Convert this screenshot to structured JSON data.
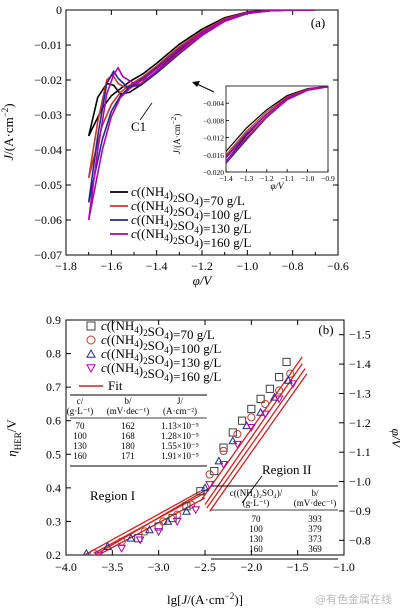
{
  "watermark": "@有色金属在线",
  "chart_data": [
    {
      "panel": "(a)",
      "type": "line",
      "xlabel": "φ/V",
      "ylabel": "J/(A·cm⁻²)",
      "xlim": [
        -1.8,
        -0.6
      ],
      "ylim": [
        -0.07,
        0.0
      ],
      "xticks": [
        -1.8,
        -1.6,
        -1.4,
        -1.2,
        -1.0,
        -0.8,
        -0.6
      ],
      "xtick_labels": [
        "−1.8",
        "−1.6",
        "−1.4",
        "−1.2",
        "−1.0",
        "−0.8",
        "−0.6"
      ],
      "yticks": [
        0,
        -0.01,
        -0.02,
        -0.03,
        -0.04,
        -0.05,
        -0.06,
        -0.07
      ],
      "ytick_labels": [
        "0",
        "−0.01",
        "−0.02",
        "−0.03",
        "−0.04",
        "−0.05",
        "−0.06",
        "−0.07"
      ],
      "annotation": "C1",
      "legend_position": "bottom-center",
      "series": [
        {
          "name": "c((NH4)2SO4)=70 g/L",
          "color": "#000000",
          "forward": [
            [
              -1.7,
              -0.036
            ],
            [
              -1.66,
              -0.025
            ],
            [
              -1.62,
              -0.021
            ],
            [
              -1.59,
              -0.0215
            ],
            [
              -1.56,
              -0.024
            ],
            [
              -1.52,
              -0.0235
            ],
            [
              -1.46,
              -0.021
            ],
            [
              -1.4,
              -0.0175
            ],
            [
              -1.3,
              -0.0115
            ],
            [
              -1.2,
              -0.0065
            ],
            [
              -1.1,
              -0.0028
            ],
            [
              -1.0,
              -0.0008
            ],
            [
              -0.9,
              -0.0002
            ],
            [
              -0.8,
              0.0
            ],
            [
              -0.7,
              0.0
            ]
          ],
          "reverse": [
            [
              -0.7,
              0.0
            ],
            [
              -0.8,
              0.0
            ],
            [
              -0.9,
              -0.0001
            ],
            [
              -1.0,
              -0.0006
            ],
            [
              -1.1,
              -0.0022
            ],
            [
              -1.2,
              -0.0055
            ],
            [
              -1.3,
              -0.0098
            ],
            [
              -1.4,
              -0.0152
            ],
            [
              -1.46,
              -0.0182
            ],
            [
              -1.52,
              -0.0205
            ],
            [
              -1.56,
              -0.0225
            ],
            [
              -1.6,
              -0.0245
            ],
            [
              -1.64,
              -0.028
            ],
            [
              -1.7,
              -0.036
            ]
          ]
        },
        {
          "name": "c((NH4)2SO4)=100 g/L",
          "color": "#c0392b",
          "forward": [
            [
              -1.7,
              -0.048
            ],
            [
              -1.66,
              -0.032
            ],
            [
              -1.62,
              -0.02
            ],
            [
              -1.595,
              -0.0185
            ],
            [
              -1.57,
              -0.021
            ],
            [
              -1.53,
              -0.0225
            ],
            [
              -1.47,
              -0.021
            ],
            [
              -1.4,
              -0.0175
            ],
            [
              -1.3,
              -0.012
            ],
            [
              -1.2,
              -0.007
            ],
            [
              -1.1,
              -0.003
            ],
            [
              -1.0,
              -0.0009
            ],
            [
              -0.9,
              -0.0002
            ],
            [
              -0.8,
              0.0
            ],
            [
              -0.7,
              0.0
            ]
          ],
          "reverse": [
            [
              -0.7,
              0.0
            ],
            [
              -0.8,
              0.0
            ],
            [
              -0.9,
              -0.0001
            ],
            [
              -1.0,
              -0.0007
            ],
            [
              -1.1,
              -0.0025
            ],
            [
              -1.2,
              -0.006
            ],
            [
              -1.3,
              -0.0105
            ],
            [
              -1.4,
              -0.016
            ],
            [
              -1.46,
              -0.019
            ],
            [
              -1.52,
              -0.0215
            ],
            [
              -1.56,
              -0.0235
            ],
            [
              -1.6,
              -0.027
            ],
            [
              -1.64,
              -0.033
            ],
            [
              -1.7,
              -0.048
            ]
          ]
        },
        {
          "name": "c((NH4)2SO4)=130 g/L",
          "color": "#1f2a8a",
          "forward": [
            [
              -1.7,
              -0.055
            ],
            [
              -1.66,
              -0.036
            ],
            [
              -1.62,
              -0.021
            ],
            [
              -1.59,
              -0.0175
            ],
            [
              -1.57,
              -0.0195
            ],
            [
              -1.53,
              -0.022
            ],
            [
              -1.47,
              -0.0215
            ],
            [
              -1.4,
              -0.018
            ],
            [
              -1.3,
              -0.0125
            ],
            [
              -1.2,
              -0.0073
            ],
            [
              -1.1,
              -0.0032
            ],
            [
              -1.0,
              -0.001
            ],
            [
              -0.9,
              -0.0002
            ],
            [
              -0.8,
              0.0
            ],
            [
              -0.7,
              0.0
            ]
          ],
          "reverse": [
            [
              -0.7,
              0.0
            ],
            [
              -0.8,
              0.0
            ],
            [
              -0.9,
              -0.0001
            ],
            [
              -1.0,
              -0.0008
            ],
            [
              -1.1,
              -0.0028
            ],
            [
              -1.2,
              -0.0065
            ],
            [
              -1.3,
              -0.011
            ],
            [
              -1.4,
              -0.0165
            ],
            [
              -1.46,
              -0.0195
            ],
            [
              -1.52,
              -0.022
            ],
            [
              -1.56,
              -0.0245
            ],
            [
              -1.6,
              -0.029
            ],
            [
              -1.64,
              -0.037
            ],
            [
              -1.7,
              -0.055
            ]
          ]
        },
        {
          "name": "c((NH4)2SO4)=160 g/L",
          "color": "#b000b0",
          "forward": [
            [
              -1.7,
              -0.06
            ],
            [
              -1.66,
              -0.04
            ],
            [
              -1.62,
              -0.024
            ],
            [
              -1.59,
              -0.0185
            ],
            [
              -1.57,
              -0.0165
            ],
            [
              -1.55,
              -0.019
            ],
            [
              -1.5,
              -0.021
            ],
            [
              -1.44,
              -0.0195
            ],
            [
              -1.4,
              -0.0175
            ],
            [
              -1.3,
              -0.0122
            ],
            [
              -1.2,
              -0.0072
            ],
            [
              -1.1,
              -0.0032
            ],
            [
              -1.0,
              -0.001
            ],
            [
              -0.9,
              -0.0002
            ],
            [
              -0.8,
              0.0
            ],
            [
              -0.7,
              0.0
            ]
          ],
          "reverse": [
            [
              -0.7,
              0.0
            ],
            [
              -0.8,
              0.0
            ],
            [
              -0.9,
              -0.0001
            ],
            [
              -1.0,
              -0.0008
            ],
            [
              -1.1,
              -0.0028
            ],
            [
              -1.2,
              -0.0066
            ],
            [
              -1.3,
              -0.0112
            ],
            [
              -1.4,
              -0.0168
            ],
            [
              -1.46,
              -0.0198
            ],
            [
              -1.52,
              -0.0225
            ],
            [
              -1.56,
              -0.025
            ],
            [
              -1.6,
              -0.0305
            ],
            [
              -1.64,
              -0.04
            ],
            [
              -1.7,
              -0.06
            ]
          ]
        }
      ],
      "inset": {
        "xlabel": "φ/V",
        "ylabel": "J/(A·cm⁻²)",
        "xlim": [
          -1.4,
          -0.9
        ],
        "ylim": [
          -0.02,
          0.0
        ],
        "xticks": [
          -1.4,
          -1.3,
          -1.2,
          -1.1,
          -1.0,
          -0.9
        ],
        "xtick_labels": [
          "−1.4",
          "−1.3",
          "−1.2",
          "−1.1",
          "−1.0",
          "−0.9"
        ],
        "yticks": [
          -0.004,
          -0.008,
          -0.012,
          -0.016,
          -0.02
        ],
        "ytick_labels": [
          "−0.004",
          "−0.008",
          "−0.012",
          "−0.016",
          "−0.020"
        ]
      }
    },
    {
      "panel": "(b)",
      "type": "scatter",
      "xlabel": "lg[J/(A·cm⁻²)]",
      "ylabel": "η_HER/V",
      "y2label": "φ/V",
      "xlim": [
        -4.0,
        -1.0
      ],
      "ylim": [
        0.2,
        0.9
      ],
      "y2lim": [
        -0.75,
        -1.55
      ],
      "xticks": [
        -4.0,
        -3.5,
        -3.0,
        -2.5,
        -2.0,
        -1.5,
        -1.0
      ],
      "xtick_labels": [
        "−4.0",
        "−3.5",
        "−3.0",
        "−2.5",
        "−2.0",
        "−1.5",
        "−1.0"
      ],
      "yticks": [
        0.2,
        0.3,
        0.4,
        0.5,
        0.6,
        0.7,
        0.8,
        0.9
      ],
      "ytick_labels": [
        "0.2",
        "0.3",
        "0.4",
        "0.5",
        "0.6",
        "0.7",
        "0.8",
        "0.9"
      ],
      "y2ticks": [
        -0.8,
        -0.9,
        -1.0,
        -1.1,
        -1.2,
        -1.3,
        -1.4,
        -1.5
      ],
      "y2tick_labels": [
        "−0.8",
        "−0.9",
        "−1.0",
        "−1.1",
        "−1.2",
        "−1.3",
        "−1.4",
        "−1.5"
      ],
      "annotations": [
        "Region I",
        "Region II"
      ],
      "legend_position": "top-left",
      "fit_label": "Fit",
      "series": [
        {
          "name": "c((NH4)2SO4)=70 g/L",
          "marker": "square",
          "color": "#404040",
          "x": [
            -3.22,
            -3.0,
            -2.85,
            -2.7,
            -2.55,
            -2.4,
            -2.3,
            -2.2,
            -2.1,
            -2.0,
            -1.9,
            -1.8,
            -1.7,
            -1.62
          ],
          "y": [
            0.25,
            0.285,
            0.31,
            0.345,
            0.39,
            0.45,
            0.52,
            0.565,
            0.6,
            0.635,
            0.665,
            0.695,
            0.73,
            0.775
          ]
        },
        {
          "name": "c((NH4)2SO4)=100 g/L",
          "marker": "circle",
          "color": "#c0392b",
          "x": [
            -3.7,
            -3.4,
            -3.15,
            -2.95,
            -2.8,
            -2.65,
            -2.45,
            -2.3,
            -2.15,
            -2.0,
            -1.85,
            -1.7,
            -1.58
          ],
          "y": [
            0.205,
            0.24,
            0.27,
            0.3,
            0.32,
            0.35,
            0.44,
            0.51,
            0.56,
            0.61,
            0.65,
            0.69,
            0.74
          ]
        },
        {
          "name": "c((NH4)2SO4)=130 g/L",
          "marker": "triangle-up",
          "color": "#1f2a8a",
          "x": [
            -3.78,
            -3.55,
            -3.3,
            -3.1,
            -2.9,
            -2.7,
            -2.5,
            -2.35,
            -2.2,
            -2.05,
            -1.9,
            -1.75,
            -1.6
          ],
          "y": [
            0.205,
            0.225,
            0.25,
            0.275,
            0.3,
            0.33,
            0.4,
            0.48,
            0.54,
            0.585,
            0.625,
            0.67,
            0.72
          ]
        },
        {
          "name": "c((NH4)2SO4)=160 g/L",
          "marker": "triangle-down",
          "color": "#b000b0",
          "x": [
            -3.65,
            -3.4,
            -3.2,
            -3.0,
            -2.8,
            -2.6,
            -2.45,
            -2.3,
            -2.15,
            -2.0,
            -1.85,
            -1.7,
            -1.55
          ],
          "y": [
            0.2,
            0.22,
            0.245,
            0.27,
            0.3,
            0.335,
            0.41,
            0.47,
            0.53,
            0.58,
            0.62,
            0.665,
            0.71
          ]
        }
      ],
      "fits": [
        {
          "x": [
            -3.75,
            -2.45
          ],
          "y": [
            0.19,
            0.4
          ]
        },
        {
          "x": [
            -3.8,
            -2.55
          ],
          "y": [
            0.2,
            0.39
          ]
        },
        {
          "x": [
            -3.7,
            -2.5
          ],
          "y": [
            0.205,
            0.385
          ]
        },
        {
          "x": [
            -3.65,
            -2.5
          ],
          "y": [
            0.2,
            0.37
          ]
        },
        {
          "x": [
            -2.55,
            -1.45
          ],
          "y": [
            0.36,
            0.79
          ]
        },
        {
          "x": [
            -2.5,
            -1.45
          ],
          "y": [
            0.35,
            0.77
          ]
        },
        {
          "x": [
            -2.48,
            -1.42
          ],
          "y": [
            0.34,
            0.755
          ]
        },
        {
          "x": [
            -2.45,
            -1.4
          ],
          "y": [
            0.33,
            0.74
          ]
        }
      ],
      "table_region1": {
        "headers": [
          [
            "c/",
            "(g·L⁻¹)"
          ],
          [
            "b/",
            "(mV·dec⁻¹)"
          ],
          [
            "J/",
            "(A·cm⁻²)"
          ]
        ],
        "rows": [
          [
            "70",
            "162",
            "1.13×10⁻⁵"
          ],
          [
            "100",
            "168",
            "1.28×10⁻⁵"
          ],
          [
            "130",
            "180",
            "1.55×10⁻⁵"
          ],
          [
            "160",
            "171",
            "1.91×10⁻⁵"
          ]
        ]
      },
      "table_region2": {
        "headers": [
          [
            "c((NH₄)₂SO₄)/",
            "(g·L⁻¹)"
          ],
          [
            "b/",
            "(mV·dec⁻¹)"
          ]
        ],
        "rows": [
          [
            "70",
            "393"
          ],
          [
            "100",
            "379"
          ],
          [
            "130",
            "373"
          ],
          [
            "160",
            "369"
          ]
        ]
      }
    }
  ]
}
